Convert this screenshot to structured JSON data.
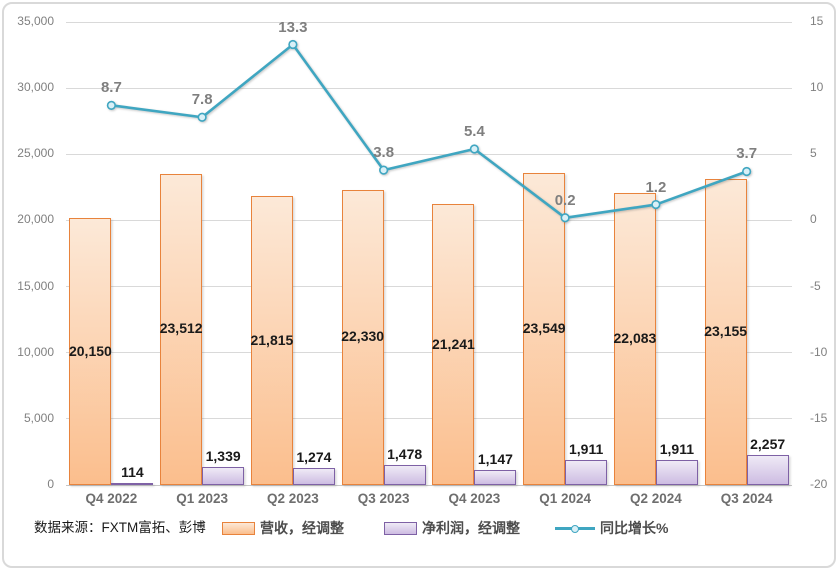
{
  "window": {
    "background": "#FFFFFF",
    "frame_border": "#D9D9D9"
  },
  "source_note": "数据来源：FXTM富拓、彭博",
  "legend": {
    "items": [
      {
        "label": "营收，经调整",
        "swatch": "orange-bar"
      },
      {
        "label": "净利润，经调整",
        "swatch": "purple-bar"
      },
      {
        "label": "同比增长%",
        "swatch": "teal-line"
      }
    ]
  },
  "colors": {
    "revenue_fill_top": "#FCE9D8",
    "revenue_fill_bottom": "#FBBE8D",
    "revenue_border": "#E8833C",
    "profit_fill_top": "#EFEAF6",
    "profit_fill_bottom": "#CDBCE2",
    "profit_border": "#7E61A5",
    "growth_line": "#3FA6C1",
    "marker_fill": "#D9F0F7",
    "gridline": "#D9D9D9",
    "axis_text": "#808080",
    "category_text": "#6E6E6E",
    "bar_label_text": "#1A1A1A",
    "line_label_text": "#7F7F7F"
  },
  "chart_data": {
    "type": "combo",
    "categories": [
      "Q4 2022",
      "Q1 2023",
      "Q2 2023",
      "Q3 2023",
      "Q4 2023",
      "Q1 2024",
      "Q2 2024",
      "Q3 2024"
    ],
    "series": [
      {
        "name": "营收，经调整",
        "type": "bar",
        "axis": "left",
        "values": [
          20150,
          23512,
          21815,
          22330,
          21241,
          23549,
          22083,
          23155
        ],
        "labels": [
          "20,150",
          "23,512",
          "21,815",
          "22,330",
          "21,241",
          "23,549",
          "22,083",
          "23,155"
        ],
        "label_position": "inside-center"
      },
      {
        "name": "净利润，经调整",
        "type": "bar",
        "axis": "left",
        "values": [
          114,
          1339,
          1274,
          1478,
          1147,
          1911,
          1911,
          2257
        ],
        "labels": [
          "114",
          "1,339",
          "1,274",
          "1,478",
          "1,147",
          "1,911",
          "1,911",
          "2,257"
        ],
        "label_position": "outside-top"
      },
      {
        "name": "同比增长%",
        "type": "line",
        "axis": "right",
        "values": [
          8.7,
          7.8,
          13.3,
          3.8,
          5.4,
          0.2,
          1.2,
          3.7
        ],
        "labels": [
          "8.7",
          "7.8",
          "13.3",
          "3.8",
          "5.4",
          "0.2",
          "1.2",
          "3.7"
        ],
        "label_position": "above-point"
      }
    ],
    "left_axis": {
      "min": 0,
      "max": 35000,
      "step": 5000,
      "tick_labels": [
        "0",
        "5,000",
        "10,000",
        "15,000",
        "20,000",
        "25,000",
        "30,000",
        "35,000"
      ]
    },
    "right_axis": {
      "min": -20,
      "max": 15,
      "step": 5,
      "tick_labels": [
        "-20",
        "-15",
        "-10",
        "-5",
        "0",
        "5",
        "10",
        "15"
      ]
    },
    "grid": true,
    "legend_position": "bottom"
  }
}
